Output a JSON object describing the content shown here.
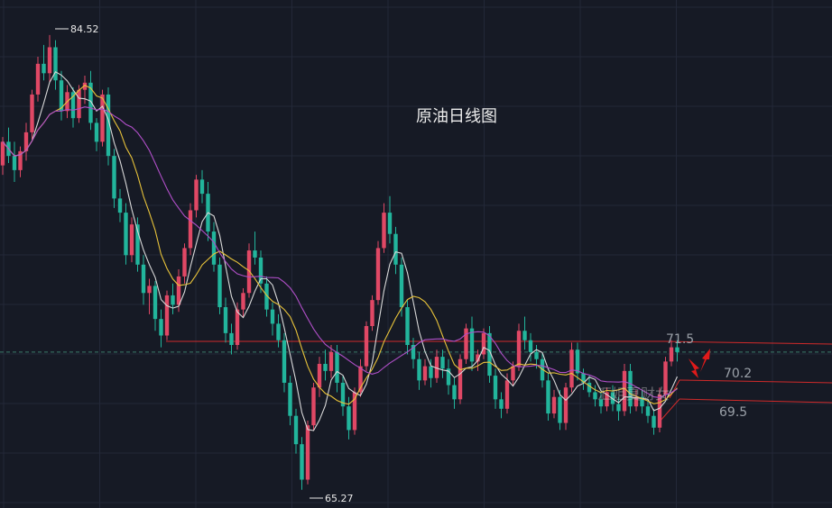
{
  "chart_data": {
    "type": "candlestick",
    "title": "原油日线图",
    "watermark": "汇姐夏财女",
    "colors": {
      "background": "#161a25",
      "grid": "#232838",
      "up": "#e04865",
      "down": "#22b59c",
      "ma_white": "#d9d9d9",
      "ma_yellow": "#e8c33a",
      "ma_purple": "#b04fc8",
      "level_line": "#d02a2a",
      "arrow": "#e01a1a",
      "level_text": "#9aa0a8",
      "extreme_text": "#e8e8e8",
      "current_price": "#3b7a6a"
    },
    "price_range": [
      64.5,
      86
    ],
    "annotations": {
      "high_label": "84.52",
      "low_label": "65.27",
      "high_value": 84.52,
      "low_value": 65.27
    },
    "levels": [
      {
        "label": "71.5",
        "value": 71.5
      },
      {
        "label": "70.2",
        "value": 70.2
      },
      {
        "label": "69.5",
        "value": 69.5
      }
    ],
    "support_value": 71.55,
    "current_price": 71.1,
    "ohlc": [
      [
        79,
        80.2,
        78.6,
        80
      ],
      [
        80,
        80.6,
        79.1,
        79.4
      ],
      [
        79.4,
        80,
        78.3,
        78.8
      ],
      [
        78.8,
        79.8,
        78.5,
        79.6
      ],
      [
        79.6,
        80.8,
        79.2,
        80.4
      ],
      [
        80.4,
        82.2,
        80.1,
        82
      ],
      [
        82,
        83.6,
        81.7,
        83.3
      ],
      [
        83.3,
        84.1,
        82.6,
        82.9
      ],
      [
        82.9,
        84.52,
        82.5,
        84
      ],
      [
        84,
        84.3,
        82.2,
        82.6
      ],
      [
        82.6,
        83,
        80.9,
        81.3
      ],
      [
        81.3,
        82.4,
        81,
        82.1
      ],
      [
        82.1,
        82.3,
        80.6,
        81
      ],
      [
        81,
        82.4,
        80.8,
        82.2
      ],
      [
        82.2,
        82.8,
        81.6,
        82.5
      ],
      [
        82.5,
        83,
        80.5,
        80.8
      ],
      [
        80.8,
        81,
        79.6,
        80
      ],
      [
        80,
        82.2,
        79.8,
        82
      ],
      [
        82,
        82.3,
        79,
        79.4
      ],
      [
        79.4,
        79.7,
        77.2,
        77.6
      ],
      [
        77.6,
        78,
        76.6,
        77
      ],
      [
        77,
        77.4,
        74.8,
        75.2
      ],
      [
        75.2,
        76.8,
        74.9,
        76.5
      ],
      [
        76.5,
        76.8,
        74.5,
        74.8
      ],
      [
        74.8,
        75.2,
        73.1,
        73.6
      ],
      [
        73.6,
        74.2,
        72.7,
        73.9
      ],
      [
        73.9,
        74.1,
        72,
        72.5
      ],
      [
        72.5,
        72.9,
        71.3,
        71.8
      ],
      [
        71.8,
        73.7,
        71.6,
        73.5
      ],
      [
        73.5,
        74,
        72.7,
        73.1
      ],
      [
        73.1,
        74.6,
        72.8,
        74.3
      ],
      [
        74.3,
        75.7,
        74,
        75.5
      ],
      [
        75.5,
        77.4,
        75.2,
        77.1
      ],
      [
        77.1,
        78.6,
        76.8,
        78.4
      ],
      [
        78.4,
        78.8,
        77.4,
        77.8
      ],
      [
        77.8,
        78.3,
        75.8,
        76.2
      ],
      [
        76.2,
        76.6,
        74.5,
        74.8
      ],
      [
        74.8,
        75.1,
        72.7,
        73
      ],
      [
        73,
        73.4,
        71.5,
        71.9
      ],
      [
        71.9,
        72.3,
        71,
        71.4
      ],
      [
        71.4,
        73.2,
        71.2,
        72.9
      ],
      [
        72.9,
        73.8,
        72.6,
        73.6
      ],
      [
        73.6,
        75.7,
        73.4,
        75.4
      ],
      [
        75.4,
        76.2,
        74.8,
        75.1
      ],
      [
        75.1,
        75.4,
        73.6,
        74
      ],
      [
        74,
        74.3,
        72.6,
        72.9
      ],
      [
        72.9,
        73.2,
        71.8,
        72.3
      ],
      [
        72.3,
        72.7,
        71.3,
        71.6
      ],
      [
        71.6,
        71.9,
        69.4,
        69.8
      ],
      [
        69.8,
        70.1,
        68,
        68.4
      ],
      [
        68.4,
        68.7,
        66.8,
        67.2
      ],
      [
        67.2,
        67.5,
        65.27,
        65.7
      ],
      [
        65.7,
        68.2,
        65.5,
        68
      ],
      [
        68,
        69.8,
        67.8,
        69.6
      ],
      [
        69.6,
        70.9,
        69.2,
        70.6
      ],
      [
        70.6,
        71.2,
        69.9,
        70.3
      ],
      [
        70.3,
        71.4,
        70,
        71.1
      ],
      [
        71.1,
        71.4,
        69.4,
        69.8
      ],
      [
        69.8,
        70.1,
        68.4,
        68.8
      ],
      [
        68.8,
        69.2,
        67.4,
        67.8
      ],
      [
        67.8,
        69.6,
        67.6,
        69.4
      ],
      [
        69.4,
        70.8,
        69.2,
        70.5
      ],
      [
        70.5,
        72.4,
        70.3,
        72.2
      ],
      [
        72.2,
        73.5,
        72,
        73.3
      ],
      [
        73.3,
        75.8,
        73.1,
        75.5
      ],
      [
        75.5,
        77.4,
        75.3,
        77
      ],
      [
        77,
        77.7,
        75.7,
        76.1
      ],
      [
        76.1,
        76.4,
        74.4,
        74.8
      ],
      [
        74.8,
        75.1,
        72.6,
        73
      ],
      [
        73,
        73.3,
        71,
        71.4
      ],
      [
        71.4,
        71.7,
        70.4,
        70.8
      ],
      [
        70.8,
        71.1,
        69.5,
        69.9
      ],
      [
        69.9,
        70.8,
        69.7,
        70.5
      ],
      [
        70.5,
        70.8,
        69.6,
        70
      ],
      [
        70,
        71.2,
        69.8,
        70.9
      ],
      [
        70.9,
        71.2,
        70,
        70.4
      ],
      [
        70.4,
        70.8,
        69.3,
        69.7
      ],
      [
        69.7,
        70,
        68.7,
        69.1
      ],
      [
        69.1,
        71,
        68.9,
        70.8
      ],
      [
        70.8,
        72.3,
        70.6,
        72.1
      ],
      [
        72.1,
        72.6,
        70.3,
        70.7
      ],
      [
        70.7,
        71.2,
        70.3,
        71
      ],
      [
        71,
        72.1,
        70.8,
        71.9
      ],
      [
        71.9,
        72.2,
        69.8,
        70.1
      ],
      [
        70.1,
        70.4,
        68.7,
        69.1
      ],
      [
        69.1,
        69.4,
        68.3,
        68.7
      ],
      [
        68.7,
        70.2,
        68.5,
        69.9
      ],
      [
        69.9,
        70.7,
        69.7,
        70.5
      ],
      [
        70.5,
        72.3,
        70.3,
        72
      ],
      [
        72,
        72.6,
        71.2,
        71.6
      ],
      [
        71.6,
        71.9,
        70.7,
        71.1
      ],
      [
        71.1,
        71.4,
        70.4,
        70.8
      ],
      [
        70.8,
        71.1,
        69.6,
        69.9
      ],
      [
        69.9,
        70.2,
        68.2,
        68.5
      ],
      [
        68.5,
        69.5,
        68.3,
        69.2
      ],
      [
        69.2,
        69.5,
        67.8,
        68.1
      ],
      [
        68.1,
        69.8,
        67.8,
        69.6
      ],
      [
        69.6,
        71.5,
        69.4,
        71.2
      ],
      [
        71.2,
        71.5,
        69.9,
        70.2
      ],
      [
        70.2,
        70.4,
        69.5,
        69.8
      ],
      [
        69.8,
        70.1,
        69.2,
        69.4
      ],
      [
        69.4,
        69.7,
        68.8,
        69.1
      ],
      [
        69.1,
        69.4,
        68.5,
        68.8
      ],
      [
        68.8,
        69.6,
        68.6,
        69.4
      ],
      [
        69.4,
        69.7,
        68.6,
        68.9
      ],
      [
        68.9,
        69.2,
        68.2,
        68.6
      ],
      [
        68.6,
        70.6,
        68.4,
        70.3
      ],
      [
        70.3,
        70.6,
        68.5,
        68.8
      ],
      [
        68.8,
        69.5,
        68.6,
        69.2
      ],
      [
        69.2,
        69.5,
        68.5,
        68.8
      ],
      [
        68.8,
        69.1,
        68.1,
        68.4
      ],
      [
        68.4,
        68.7,
        67.6,
        67.9
      ],
      [
        67.9,
        69.6,
        67.7,
        69.3
      ],
      [
        69.3,
        70.9,
        69.1,
        70.7
      ],
      [
        70.7,
        71.6,
        70.5,
        71.3
      ],
      [
        71.3,
        71.6,
        70.7,
        71.1
      ]
    ]
  }
}
